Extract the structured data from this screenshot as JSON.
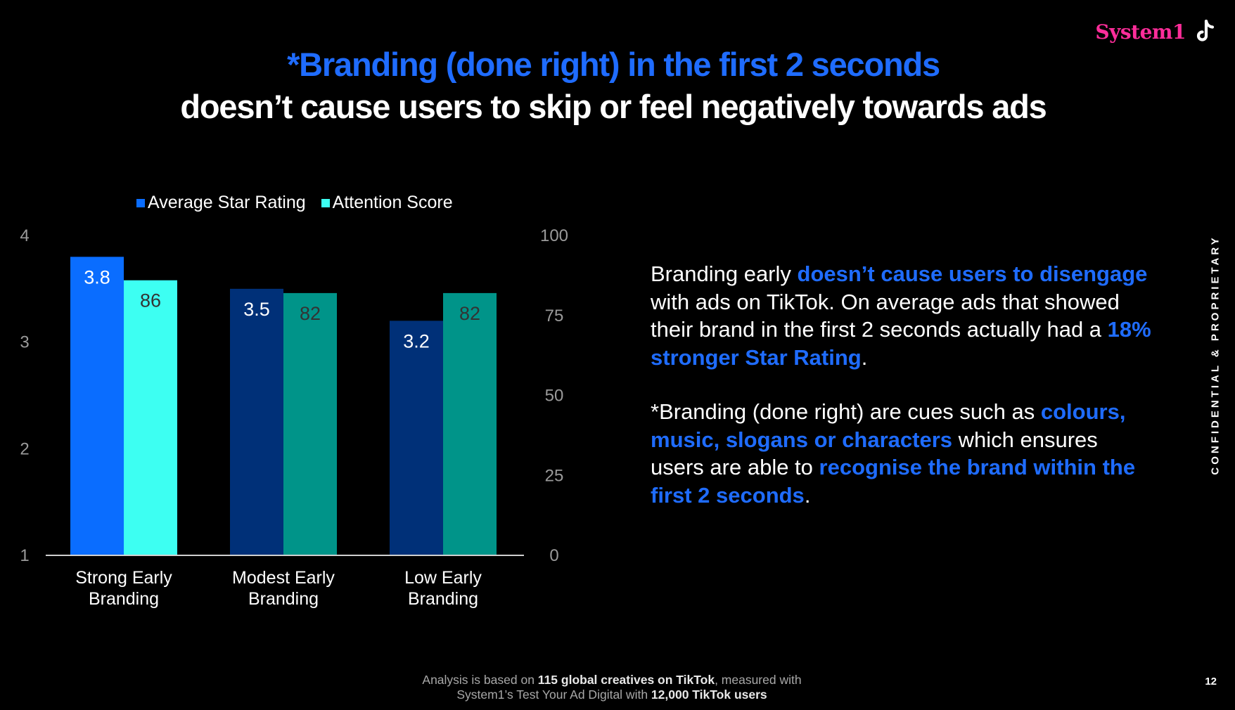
{
  "brand": {
    "name": "System1",
    "icon": "tiktok-icon"
  },
  "title": {
    "line1": "*Branding (done right) in the first 2 seconds",
    "line2": "doesn’t cause users to skip or feel negatively towards ads"
  },
  "chart_data": {
    "type": "bar",
    "categories": [
      "Strong Early Branding",
      "Modest Early Branding",
      "Low Early Branding"
    ],
    "category_lines": [
      [
        "Strong Early",
        "Branding"
      ],
      [
        "Modest Early",
        "Branding"
      ],
      [
        "Low Early",
        "Branding"
      ]
    ],
    "series": [
      {
        "name": "Average Star Rating",
        "axis": "left",
        "values": [
          3.8,
          3.5,
          3.2
        ],
        "labels": [
          "3.8",
          "3.5",
          "3.2"
        ],
        "colors": [
          "#0a6dff",
          "#003078",
          "#003078"
        ],
        "label_color": "#ffffff"
      },
      {
        "name": "Attention Score",
        "axis": "right",
        "values": [
          86,
          82,
          82
        ],
        "labels": [
          "86",
          "82",
          "82"
        ],
        "colors": [
          "#3dfff2",
          "#009489",
          "#009489"
        ],
        "label_color": "#333333"
      }
    ],
    "y_left": {
      "min": 1,
      "max": 4,
      "ticks": [
        "1",
        "2",
        "3",
        "4"
      ]
    },
    "y_right": {
      "min": 0,
      "max": 100,
      "ticks": [
        "0",
        "25",
        "50",
        "75",
        "100"
      ]
    },
    "legend": "top-left",
    "legend_colors": [
      "#0a6dff",
      "#3dfff2"
    ],
    "grid": false
  },
  "body": {
    "p1": [
      {
        "text": "Branding early ",
        "hl": false
      },
      {
        "text": "doesn’t cause users to disengage",
        "hl": true
      },
      {
        "text": " with ads on TikTok. On average ads that showed their brand in the first 2 seconds actually had a ",
        "hl": false
      },
      {
        "text": "18% stronger Star Rating",
        "hl": true
      },
      {
        "text": ".",
        "hl": false
      }
    ],
    "p2": [
      {
        "text": "*Branding (done right) are cues such as ",
        "hl": false
      },
      {
        "text": "colours, music, slogans or characters",
        "hl": true
      },
      {
        "text": " which ensures users are able to ",
        "hl": false
      },
      {
        "text": "recognise the brand within the first 2 seconds",
        "hl": true
      },
      {
        "text": ".",
        "hl": false
      }
    ]
  },
  "side_label": "CONFIDENTIAL & PROPRIETARY",
  "footer": {
    "line1": {
      "pre": "Analysis is based on ",
      "bold": "115 global creatives on TikTok",
      "post": ", measured with"
    },
    "line2": {
      "pre": "System1’s Test Your Ad Digital with ",
      "bold": "12,000 TikTok users"
    }
  },
  "page_number": "12",
  "colors": {
    "accent_blue": "#1f6cff",
    "brand_pink": "#ff2d9a"
  }
}
